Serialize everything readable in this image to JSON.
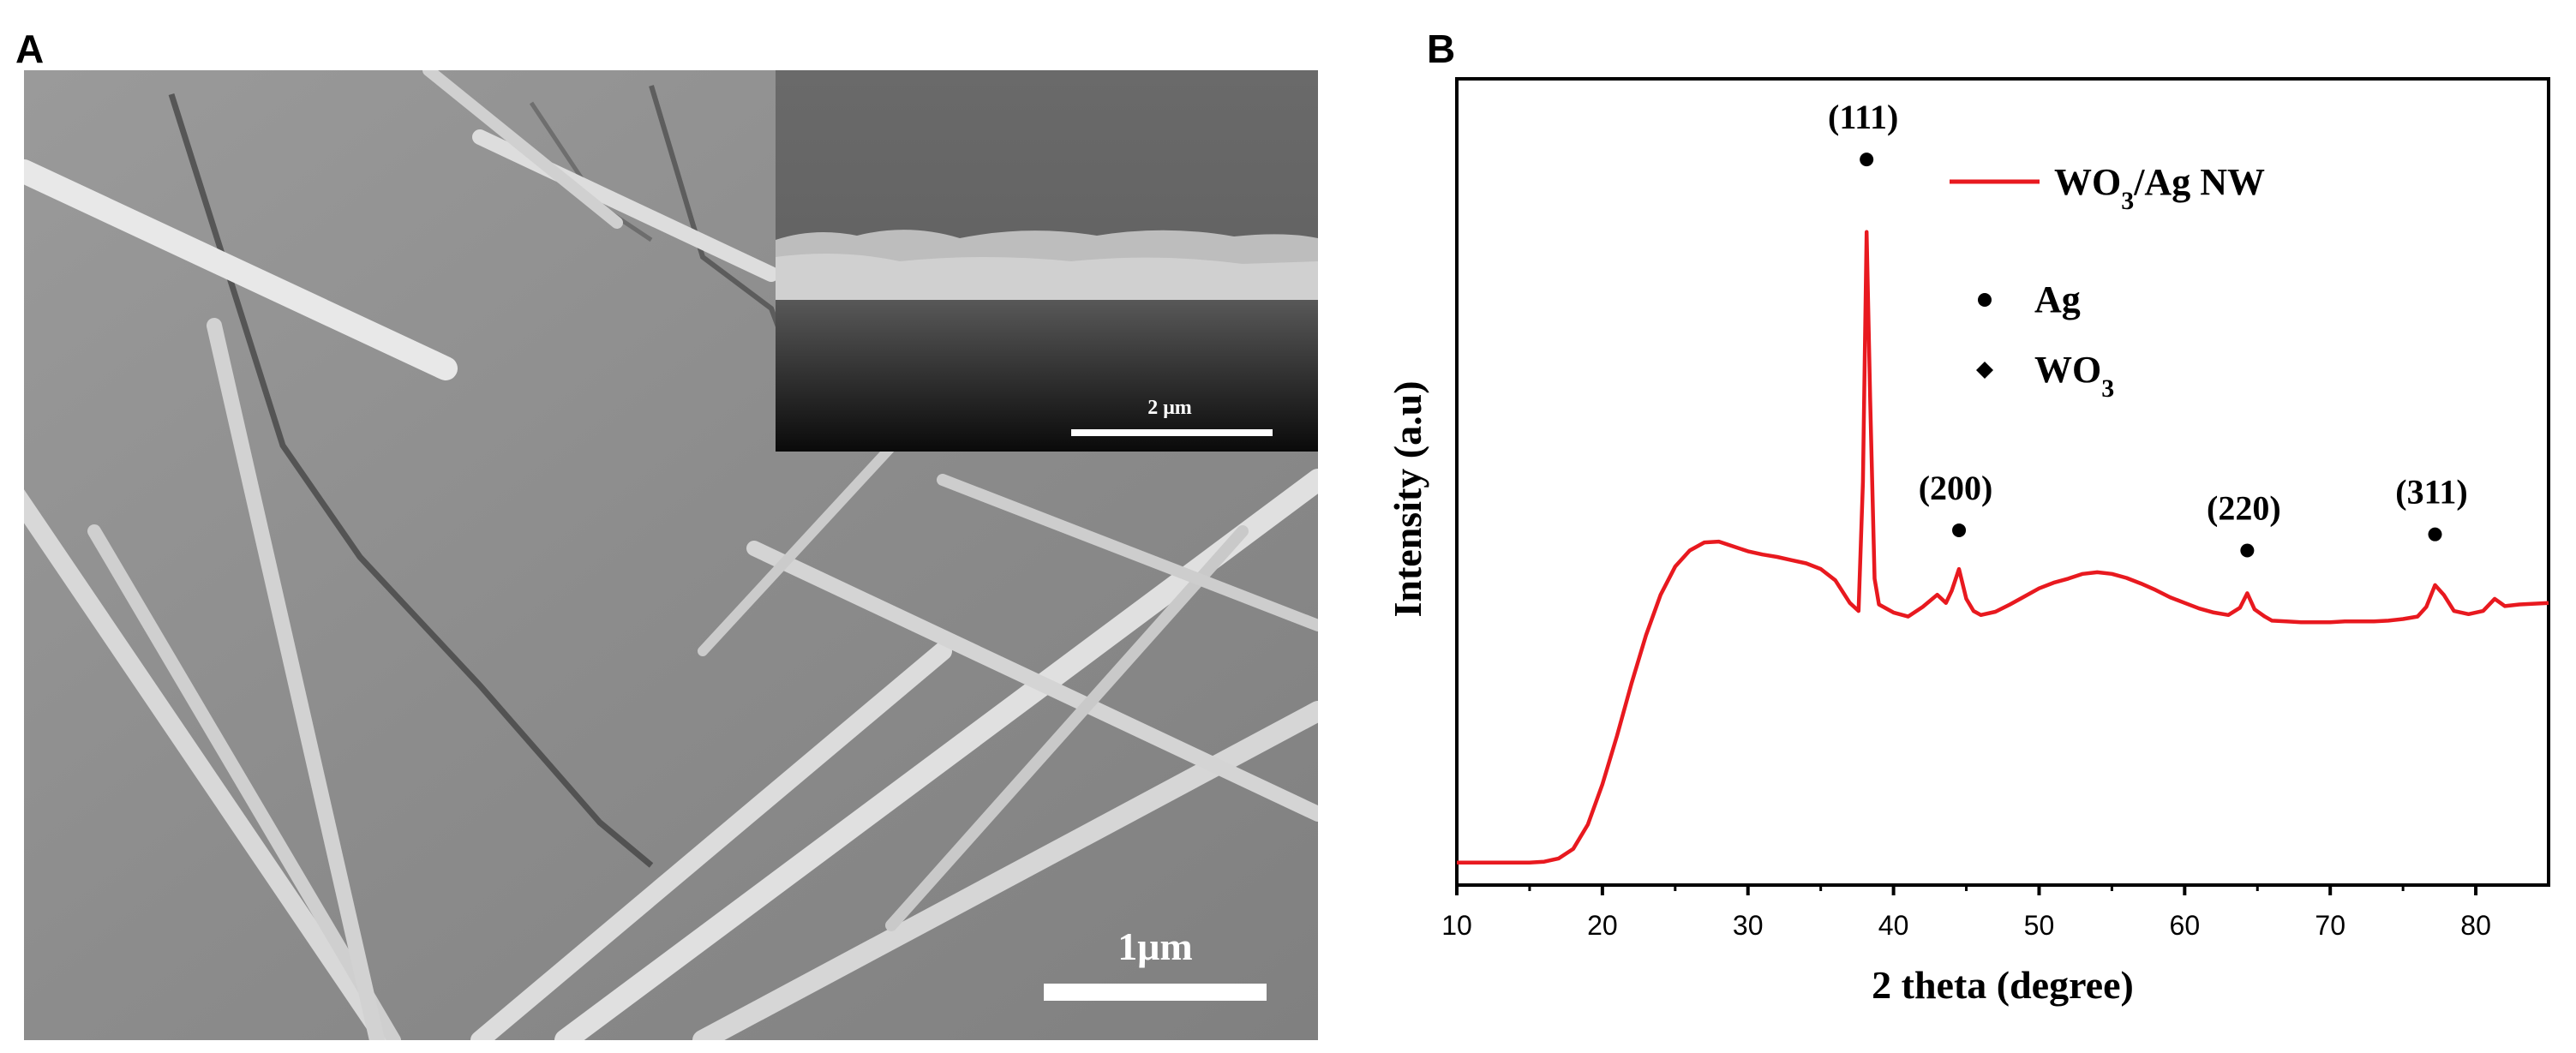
{
  "panels": {
    "a_label": "A",
    "b_label": "B"
  },
  "sem": {
    "scale_main": "1μm",
    "scale_inset": "2 μm"
  },
  "chart_data": {
    "type": "line",
    "xlabel": "2  theta (degree)",
    "ylabel": "Intensity (a.u)",
    "xlim": [
      10,
      85
    ],
    "ylim": [
      0,
      100
    ],
    "x_ticks": [
      10,
      20,
      30,
      40,
      50,
      60,
      70,
      80
    ],
    "y_ticks_shown": false,
    "grid": false,
    "legend": {
      "position": "top-right",
      "entry": "WO3/Ag NW"
    },
    "series": [
      {
        "name": "WO3/Ag NW",
        "color": "#e8191f",
        "points": [
          [
            10,
            2.8
          ],
          [
            15,
            2.8
          ],
          [
            16,
            2.9
          ],
          [
            17,
            3.3
          ],
          [
            18,
            4.5
          ],
          [
            19,
            7.5
          ],
          [
            20,
            12.5
          ],
          [
            21,
            18.5
          ],
          [
            22,
            25.0
          ],
          [
            23,
            31.0
          ],
          [
            24,
            36.0
          ],
          [
            25,
            39.5
          ],
          [
            26,
            41.5
          ],
          [
            27,
            42.5
          ],
          [
            28,
            42.6
          ],
          [
            29,
            42.0
          ],
          [
            30,
            41.4
          ],
          [
            31,
            41.0
          ],
          [
            32,
            40.7
          ],
          [
            33,
            40.3
          ],
          [
            34,
            39.9
          ],
          [
            35,
            39.2
          ],
          [
            36,
            37.8
          ],
          [
            37,
            35.0
          ],
          [
            37.6,
            34.0
          ],
          [
            37.9,
            50.0
          ],
          [
            38.15,
            81.0
          ],
          [
            38.4,
            60.0
          ],
          [
            38.7,
            38.0
          ],
          [
            39,
            34.8
          ],
          [
            40,
            33.8
          ],
          [
            41,
            33.3
          ],
          [
            42,
            34.5
          ],
          [
            43,
            36.0
          ],
          [
            43.6,
            35.0
          ],
          [
            44,
            36.5
          ],
          [
            44.5,
            39.2
          ],
          [
            45,
            35.5
          ],
          [
            45.5,
            34.0
          ],
          [
            46,
            33.5
          ],
          [
            47,
            33.9
          ],
          [
            48,
            34.8
          ],
          [
            49,
            35.8
          ],
          [
            50,
            36.8
          ],
          [
            51,
            37.5
          ],
          [
            52,
            38.0
          ],
          [
            53,
            38.6
          ],
          [
            54,
            38.8
          ],
          [
            55,
            38.6
          ],
          [
            56,
            38.1
          ],
          [
            57,
            37.4
          ],
          [
            58,
            36.6
          ],
          [
            59,
            35.7
          ],
          [
            60,
            35.0
          ],
          [
            61,
            34.3
          ],
          [
            62,
            33.8
          ],
          [
            63,
            33.5
          ],
          [
            63.8,
            34.4
          ],
          [
            64.3,
            36.2
          ],
          [
            64.8,
            34.2
          ],
          [
            65.5,
            33.3
          ],
          [
            66,
            32.8
          ],
          [
            67,
            32.7
          ],
          [
            68,
            32.6
          ],
          [
            69,
            32.6
          ],
          [
            70,
            32.6
          ],
          [
            71,
            32.7
          ],
          [
            72,
            32.7
          ],
          [
            73,
            32.7
          ],
          [
            74,
            32.8
          ],
          [
            75,
            33.0
          ],
          [
            76,
            33.3
          ],
          [
            76.6,
            34.5
          ],
          [
            77.2,
            37.2
          ],
          [
            77.8,
            36.0
          ],
          [
            78.5,
            34.0
          ],
          [
            79.5,
            33.6
          ],
          [
            80.5,
            34.0
          ],
          [
            81.3,
            35.5
          ],
          [
            82,
            34.6
          ],
          [
            83,
            34.8
          ],
          [
            84,
            34.9
          ],
          [
            85,
            35.0
          ]
        ]
      }
    ],
    "annotations": [
      {
        "text": "(111)",
        "x": 38.15,
        "y_marker": 90.0,
        "marker": "circle"
      },
      {
        "text": "(200)",
        "x": 44.5,
        "y_marker": 44.0,
        "marker": "circle"
      },
      {
        "text": "(220)",
        "x": 64.3,
        "y_marker": 41.5,
        "marker": "circle"
      },
      {
        "text": "(311)",
        "x": 77.2,
        "y_marker": 43.5,
        "marker": "circle"
      }
    ],
    "marker_legend": [
      {
        "symbol": "circle",
        "label": "Ag"
      },
      {
        "symbol": "diamond",
        "label": "WO3"
      }
    ]
  }
}
